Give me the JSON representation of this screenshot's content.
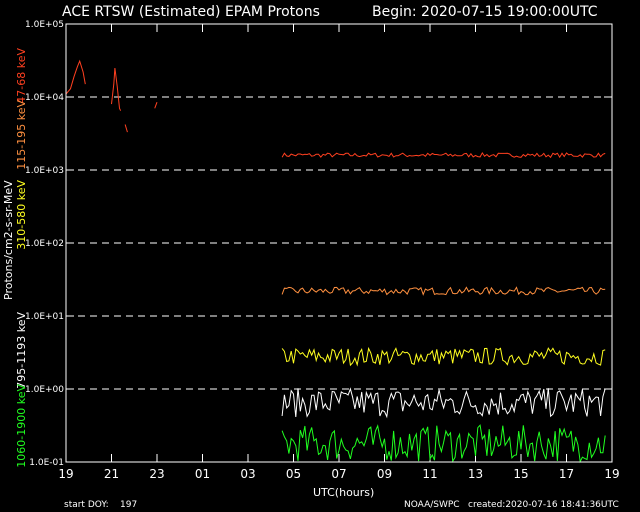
{
  "chart_data": {
    "type": "line",
    "title": "ACE RTSW (Estimated) EPAM Protons",
    "begin": "Begin: 2020-07-15 19:00:00UTC",
    "xlabel": "UTC(hours)",
    "ylabel": "Protons/cm2-s-sr-MeV",
    "yscale": "log",
    "ylim": [
      0.1,
      100000
    ],
    "xlim": [
      0,
      24
    ],
    "x_unit": "hours since 2020-07-15 19:00 UTC",
    "grid": "dashed horizontal at decades",
    "y_ticks": [
      "1.0E-01",
      "1.0E+00",
      "1.0E+01",
      "1.0E+02",
      "1.0E+03",
      "1.0E+04",
      "1.0E+05"
    ],
    "x_ticks": [
      "19",
      "21",
      "23",
      "01",
      "03",
      "05",
      "07",
      "09",
      "11",
      "13",
      "15",
      "17",
      "19"
    ],
    "footer": {
      "start_doy_label": "start DOY:",
      "start_doy": "197",
      "source": "NOAA/SWPC",
      "created": "created:2020-07-16 18:41:36UTC"
    },
    "series": [
      {
        "name": "47-68 keV",
        "color": "#ff4020",
        "level": 1600,
        "noise": 0.03,
        "start": 9.5,
        "end": 23.8,
        "early": [
          [
            0.0,
            11000
          ],
          [
            0.2,
            13000
          ],
          [
            0.35,
            19000
          ],
          [
            0.5,
            26000
          ],
          [
            0.6,
            31000
          ],
          [
            0.75,
            22000
          ],
          [
            0.85,
            15000
          ]
        ],
        "early2": [
          [
            2.0,
            8000
          ],
          [
            2.1,
            15000
          ],
          [
            2.15,
            25000
          ],
          [
            2.25,
            14000
          ],
          [
            2.35,
            7000
          ],
          [
            2.4,
            6500
          ]
        ]
      },
      {
        "name": "115-195 keV",
        "color": "#ff9040",
        "level": 22,
        "noise": 0.05,
        "start": 9.5,
        "end": 23.8
      },
      {
        "name": "310-580 keV",
        "color": "#ffff20",
        "level": 2.8,
        "noise": 0.12,
        "start": 9.5,
        "end": 23.8
      },
      {
        "name": "795-1193 keV",
        "color": "#ffffff",
        "level": 0.65,
        "noise": 0.2,
        "start": 9.5,
        "end": 23.8
      },
      {
        "name": "1060-1900 keV",
        "color": "#20ff20",
        "level": 0.18,
        "noise": 0.25,
        "start": 9.5,
        "end": 23.8
      }
    ]
  }
}
